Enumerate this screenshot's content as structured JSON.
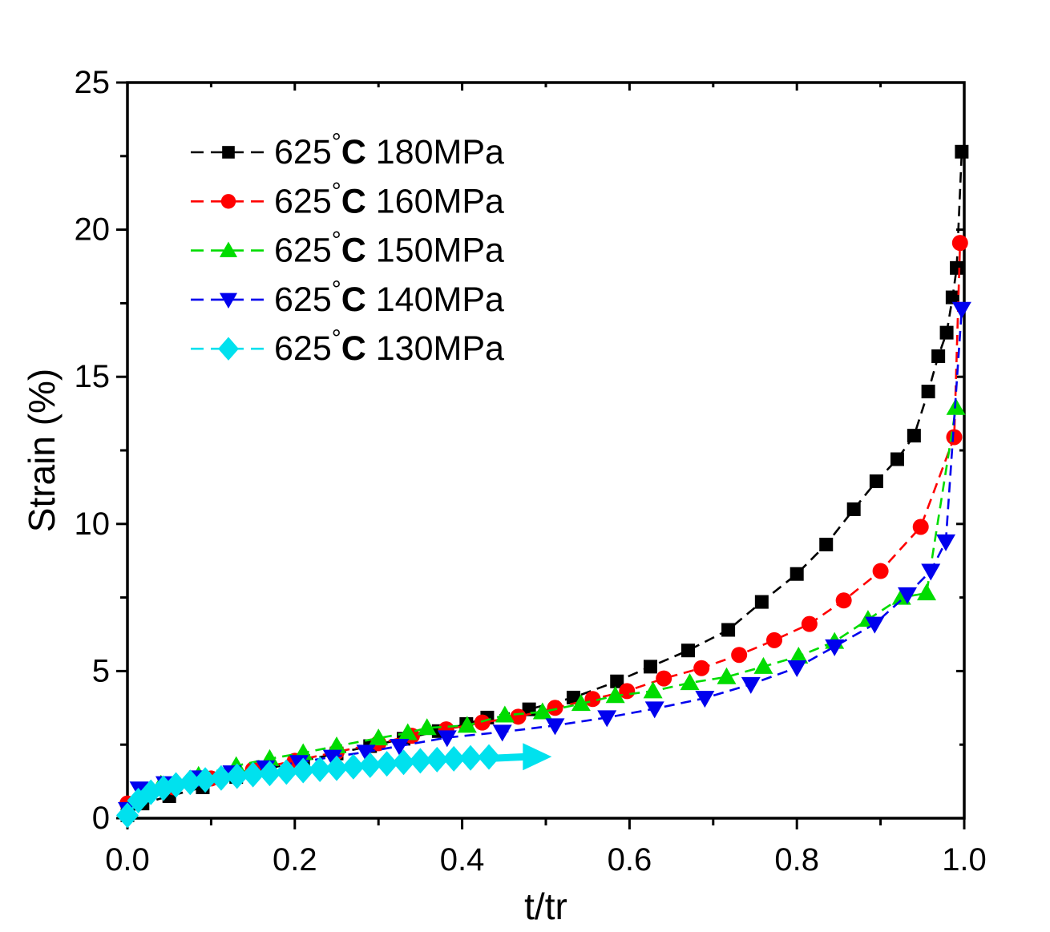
{
  "figure": {
    "background": "#ffffff",
    "frame_color": "#000000"
  },
  "chart_data": {
    "type": "line",
    "title": "",
    "xlabel": "t/tr",
    "ylabel": "Strain (%)",
    "xlim": [
      0.0,
      1.0
    ],
    "ylim": [
      0,
      25
    ],
    "grid": false,
    "legend_position": "upper-left-inside",
    "x_tick_labels": [
      "0.0",
      "0.2",
      "0.4",
      "0.6",
      "0.8",
      "1.0"
    ],
    "x_major_ticks": [
      0.0,
      0.2,
      0.4,
      0.6,
      0.8,
      1.0
    ],
    "x_minor_ticks": [
      0.1,
      0.3,
      0.5,
      0.7,
      0.9
    ],
    "y_tick_labels": [
      "0",
      "5",
      "10",
      "15",
      "20",
      "25"
    ],
    "y_major_ticks": [
      0,
      5,
      10,
      15,
      20,
      25
    ],
    "y_minor_ticks": [
      2.5,
      7.5,
      12.5,
      17.5,
      22.5
    ],
    "series": [
      {
        "name": "625°C 180MPa",
        "label_parts": {
          "prefix": "625",
          "degree": "°",
          "unit": "C",
          "stress": " 180MPa"
        },
        "color": "#000000",
        "marker": "square",
        "line_style": "dash",
        "points": [
          [
            0.0,
            0.1
          ],
          [
            0.018,
            0.5
          ],
          [
            0.05,
            0.75
          ],
          [
            0.09,
            1.05
          ],
          [
            0.13,
            1.4
          ],
          [
            0.17,
            1.7
          ],
          [
            0.21,
            1.95
          ],
          [
            0.25,
            2.2
          ],
          [
            0.29,
            2.45
          ],
          [
            0.33,
            2.7
          ],
          [
            0.372,
            2.96
          ],
          [
            0.405,
            3.2
          ],
          [
            0.43,
            3.42
          ],
          [
            0.48,
            3.7
          ],
          [
            0.533,
            4.1
          ],
          [
            0.585,
            4.65
          ],
          [
            0.625,
            5.15
          ],
          [
            0.67,
            5.7
          ],
          [
            0.718,
            6.4
          ],
          [
            0.758,
            7.35
          ],
          [
            0.8,
            8.3
          ],
          [
            0.835,
            9.3
          ],
          [
            0.868,
            10.5
          ],
          [
            0.895,
            11.45
          ],
          [
            0.92,
            12.2
          ],
          [
            0.94,
            13.0
          ],
          [
            0.957,
            14.5
          ],
          [
            0.969,
            15.7
          ],
          [
            0.979,
            16.5
          ],
          [
            0.986,
            17.7
          ],
          [
            0.991,
            18.7
          ],
          [
            0.997,
            22.65
          ]
        ]
      },
      {
        "name": "625°C 160MPa",
        "label_parts": {
          "prefix": "625",
          "degree": "°",
          "unit": "C",
          "stress": " 160MPa"
        },
        "color": "#ff0000",
        "marker": "circle",
        "line_style": "dash",
        "points": [
          [
            0.0,
            0.5
          ],
          [
            0.02,
            0.8
          ],
          [
            0.055,
            1.05
          ],
          [
            0.1,
            1.35
          ],
          [
            0.15,
            1.65
          ],
          [
            0.2,
            1.95
          ],
          [
            0.25,
            2.25
          ],
          [
            0.3,
            2.55
          ],
          [
            0.34,
            2.8
          ],
          [
            0.381,
            3.02
          ],
          [
            0.424,
            3.25
          ],
          [
            0.467,
            3.45
          ],
          [
            0.511,
            3.75
          ],
          [
            0.556,
            4.05
          ],
          [
            0.597,
            4.32
          ],
          [
            0.641,
            4.75
          ],
          [
            0.686,
            5.1
          ],
          [
            0.731,
            5.55
          ],
          [
            0.773,
            6.05
          ],
          [
            0.815,
            6.6
          ],
          [
            0.856,
            7.4
          ],
          [
            0.9,
            8.4
          ],
          [
            0.948,
            9.9
          ],
          [
            0.988,
            12.95
          ],
          [
            0.995,
            19.55
          ]
        ]
      },
      {
        "name": "625°C 150MPa",
        "label_parts": {
          "prefix": "625",
          "degree": "°",
          "unit": "C",
          "stress": " 150MPa"
        },
        "color": "#00dc00",
        "marker": "triangle-up",
        "line_style": "dash",
        "points": [
          [
            0.0,
            0.25
          ],
          [
            0.015,
            0.8
          ],
          [
            0.04,
            1.15
          ],
          [
            0.085,
            1.45
          ],
          [
            0.13,
            1.78
          ],
          [
            0.17,
            2.02
          ],
          [
            0.21,
            2.22
          ],
          [
            0.25,
            2.45
          ],
          [
            0.3,
            2.72
          ],
          [
            0.335,
            2.9
          ],
          [
            0.358,
            3.07
          ],
          [
            0.406,
            3.15
          ],
          [
            0.451,
            3.5
          ],
          [
            0.496,
            3.61
          ],
          [
            0.542,
            3.89
          ],
          [
            0.583,
            4.16
          ],
          [
            0.628,
            4.32
          ],
          [
            0.672,
            4.6
          ],
          [
            0.716,
            4.8
          ],
          [
            0.76,
            5.15
          ],
          [
            0.802,
            5.5
          ],
          [
            0.845,
            6.0
          ],
          [
            0.885,
            6.75
          ],
          [
            0.925,
            7.5
          ],
          [
            0.955,
            7.65
          ],
          [
            0.99,
            13.95
          ]
        ]
      },
      {
        "name": "625°C 140MPa",
        "label_parts": {
          "prefix": "625",
          "degree": "°",
          "unit": "C",
          "stress": " 140MPa"
        },
        "color": "#0000ee",
        "marker": "triangle-down",
        "line_style": "dash",
        "points": [
          [
            0.0,
            0.3
          ],
          [
            0.014,
            1.0
          ],
          [
            0.045,
            1.18
          ],
          [
            0.085,
            1.38
          ],
          [
            0.125,
            1.55
          ],
          [
            0.165,
            1.72
          ],
          [
            0.205,
            1.9
          ],
          [
            0.245,
            2.08
          ],
          [
            0.285,
            2.25
          ],
          [
            0.325,
            2.45
          ],
          [
            0.382,
            2.74
          ],
          [
            0.448,
            2.93
          ],
          [
            0.511,
            3.15
          ],
          [
            0.573,
            3.42
          ],
          [
            0.63,
            3.72
          ],
          [
            0.69,
            4.08
          ],
          [
            0.745,
            4.55
          ],
          [
            0.8,
            5.12
          ],
          [
            0.845,
            5.83
          ],
          [
            0.893,
            6.6
          ],
          [
            0.932,
            7.6
          ],
          [
            0.96,
            8.4
          ],
          [
            0.978,
            9.4
          ],
          [
            0.997,
            17.3
          ]
        ]
      },
      {
        "name": "625°C 130MPa",
        "label_parts": {
          "prefix": "625",
          "degree": "°",
          "unit": "C",
          "stress": " 130MPa"
        },
        "color": "#00e1ee",
        "marker": "diamond",
        "line_style": "solid",
        "points": [
          [
            0.0,
            0.1
          ],
          [
            0.013,
            0.6
          ],
          [
            0.028,
            0.88
          ],
          [
            0.043,
            1.02
          ],
          [
            0.058,
            1.13
          ],
          [
            0.075,
            1.22
          ],
          [
            0.093,
            1.3
          ],
          [
            0.112,
            1.37
          ],
          [
            0.131,
            1.43
          ],
          [
            0.15,
            1.48
          ],
          [
            0.17,
            1.52
          ],
          [
            0.19,
            1.57
          ],
          [
            0.21,
            1.62
          ],
          [
            0.23,
            1.66
          ],
          [
            0.25,
            1.7
          ],
          [
            0.27,
            1.75
          ],
          [
            0.29,
            1.8
          ],
          [
            0.31,
            1.85
          ],
          [
            0.33,
            1.9
          ],
          [
            0.35,
            1.95
          ],
          [
            0.37,
            1.99
          ],
          [
            0.39,
            2.02
          ],
          [
            0.41,
            2.05
          ],
          [
            0.432,
            2.08
          ]
        ]
      }
    ],
    "annotation_arrow": {
      "meaning": "test still running (ongoing) for 130MPa",
      "color": "#00e1ee",
      "x_start": 0.435,
      "x_end": 0.507,
      "y": 2.09,
      "direction": "right"
    }
  }
}
